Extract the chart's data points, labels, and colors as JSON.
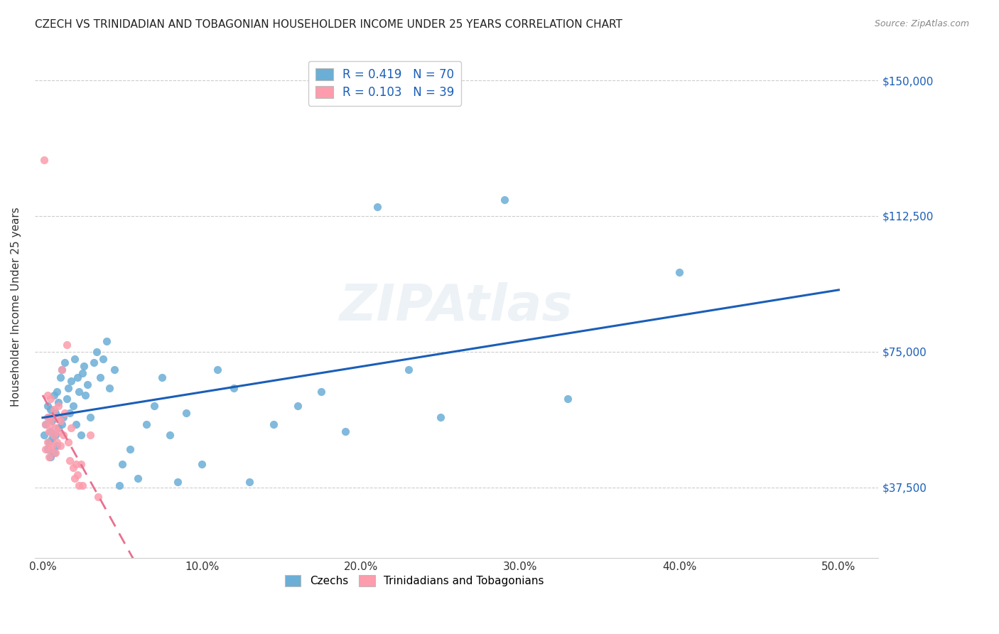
{
  "title": "CZECH VS TRINIDADIAN AND TOBAGONIAN HOUSEHOLDER INCOME UNDER 25 YEARS CORRELATION CHART",
  "source": "Source: ZipAtlas.com",
  "ylabel": "Householder Income Under 25 years",
  "xlabel_ticks": [
    "0.0%",
    "10.0%",
    "20.0%",
    "30.0%",
    "40.0%",
    "50.0%"
  ],
  "xlabel_vals": [
    0.0,
    0.1,
    0.2,
    0.3,
    0.4,
    0.5
  ],
  "ytick_labels": [
    "$37,500",
    "$75,000",
    "$112,500",
    "$150,000"
  ],
  "ytick_vals": [
    37500,
    75000,
    112500,
    150000
  ],
  "ymin": 18000,
  "ymax": 157000,
  "xmin": -0.005,
  "xmax": 0.525,
  "blue_color": "#6baed6",
  "pink_color": "#fc9cac",
  "blue_line_color": "#1a5eb8",
  "pink_line_color": "#e87090",
  "legend_text_color": "#1a5eb8",
  "watermark": "ZIPAtlas",
  "R_czech": 0.419,
  "N_czech": 70,
  "R_tnt": 0.103,
  "N_tnt": 39,
  "czech_x": [
    0.001,
    0.002,
    0.003,
    0.003,
    0.004,
    0.004,
    0.005,
    0.005,
    0.005,
    0.006,
    0.006,
    0.007,
    0.007,
    0.008,
    0.008,
    0.009,
    0.009,
    0.01,
    0.01,
    0.011,
    0.012,
    0.012,
    0.013,
    0.014,
    0.015,
    0.016,
    0.017,
    0.018,
    0.019,
    0.02,
    0.021,
    0.022,
    0.023,
    0.024,
    0.025,
    0.026,
    0.027,
    0.028,
    0.03,
    0.032,
    0.034,
    0.036,
    0.038,
    0.04,
    0.042,
    0.045,
    0.048,
    0.05,
    0.055,
    0.06,
    0.065,
    0.07,
    0.075,
    0.08,
    0.085,
    0.09,
    0.1,
    0.11,
    0.12,
    0.13,
    0.145,
    0.16,
    0.175,
    0.19,
    0.21,
    0.23,
    0.25,
    0.29,
    0.33,
    0.4
  ],
  "czech_y": [
    52000,
    55000,
    48000,
    60000,
    50000,
    57000,
    46000,
    53000,
    59000,
    51000,
    56000,
    47000,
    63000,
    52000,
    58000,
    49000,
    64000,
    54000,
    61000,
    68000,
    55000,
    70000,
    57000,
    72000,
    62000,
    65000,
    58000,
    67000,
    60000,
    73000,
    55000,
    68000,
    64000,
    52000,
    69000,
    71000,
    63000,
    66000,
    57000,
    72000,
    75000,
    68000,
    73000,
    78000,
    65000,
    70000,
    38000,
    44000,
    48000,
    40000,
    55000,
    60000,
    68000,
    52000,
    39000,
    58000,
    44000,
    70000,
    65000,
    39000,
    55000,
    60000,
    64000,
    53000,
    115000,
    70000,
    57000,
    117000,
    62000,
    97000
  ],
  "tnt_x": [
    0.001,
    0.002,
    0.002,
    0.003,
    0.003,
    0.003,
    0.004,
    0.004,
    0.005,
    0.005,
    0.005,
    0.006,
    0.006,
    0.007,
    0.007,
    0.008,
    0.008,
    0.009,
    0.009,
    0.01,
    0.01,
    0.011,
    0.011,
    0.012,
    0.013,
    0.014,
    0.015,
    0.016,
    0.017,
    0.018,
    0.019,
    0.02,
    0.021,
    0.022,
    0.023,
    0.024,
    0.025,
    0.03,
    0.035
  ],
  "tnt_y": [
    128000,
    48000,
    55000,
    50000,
    57000,
    63000,
    46000,
    53000,
    48000,
    55000,
    62000,
    49000,
    57000,
    52000,
    59000,
    47000,
    54000,
    50000,
    57000,
    53000,
    60000,
    49000,
    56000,
    70000,
    52000,
    58000,
    77000,
    50000,
    45000,
    54000,
    43000,
    40000,
    44000,
    41000,
    38000,
    44000,
    38000,
    52000,
    35000
  ]
}
